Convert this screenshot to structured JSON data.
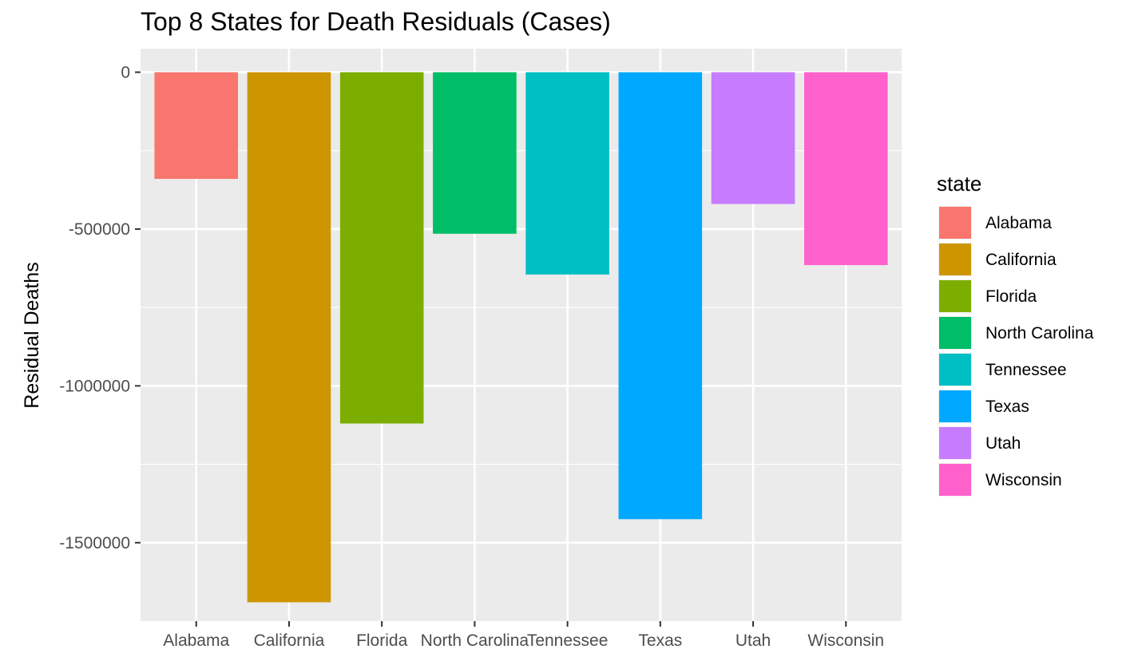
{
  "chart_data": {
    "type": "bar",
    "title": "Top 8 States for Death Residuals (Cases)",
    "xlabel": "",
    "ylabel": "Residual Deaths",
    "categories": [
      "Alabama",
      "California",
      "Florida",
      "North Carolina",
      "Tennessee",
      "Texas",
      "Utah",
      "Wisconsin"
    ],
    "values": [
      -340000,
      -1690000,
      -1120000,
      -515000,
      -645000,
      -1425000,
      -420000,
      -615000
    ],
    "colors": [
      "#F8766D",
      "#CD9600",
      "#7CAE00",
      "#00BE67",
      "#00BFC4",
      "#00A9FF",
      "#C77CFF",
      "#FF61CC"
    ],
    "ylim": [
      -1750000,
      75000
    ],
    "yticks": [
      0,
      -500000,
      -1000000,
      -1500000
    ],
    "ytick_labels": [
      "0",
      "-500000",
      "-1000000",
      "-1500000"
    ],
    "grid": true,
    "legend": {
      "title": "state",
      "position": "right",
      "entries": [
        "Alabama",
        "California",
        "Florida",
        "North Carolina",
        "Tennessee",
        "Texas",
        "Utah",
        "Wisconsin"
      ]
    }
  }
}
